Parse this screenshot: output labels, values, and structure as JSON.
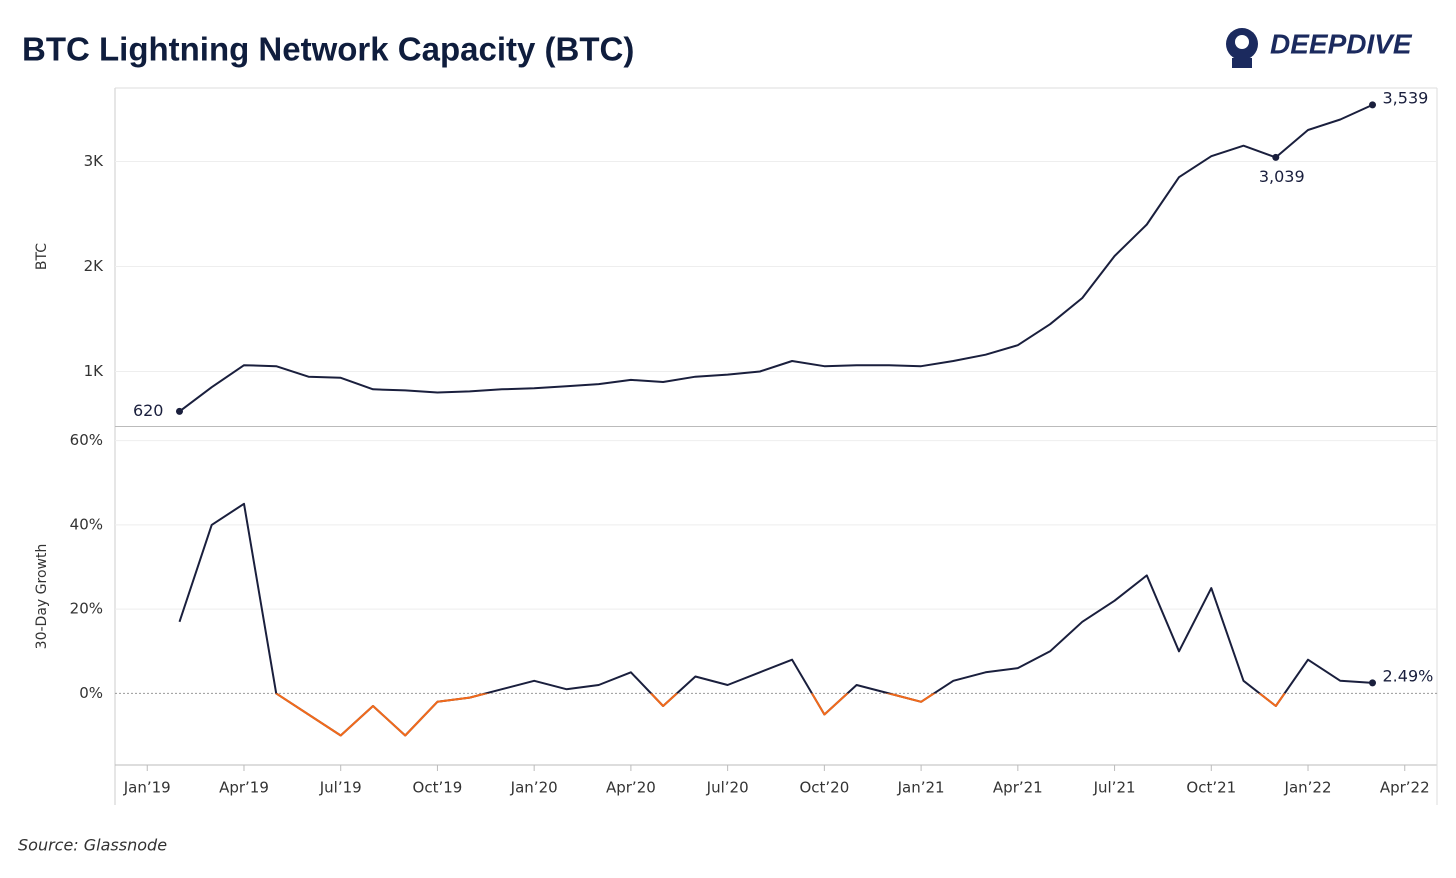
{
  "title": "BTC Lightning Network Capacity (BTC)",
  "source": "Source: Glassnode",
  "logo": "DEEPDIVE",
  "chart_data": [
    {
      "type": "line",
      "y_label": "BTC",
      "x": [
        "2019-02",
        "2019-03",
        "2019-04",
        "2019-05",
        "2019-06",
        "2019-07",
        "2019-08",
        "2019-09",
        "2019-10",
        "2019-11",
        "2019-12",
        "2020-01",
        "2020-02",
        "2020-03",
        "2020-04",
        "2020-05",
        "2020-06",
        "2020-07",
        "2020-08",
        "2020-09",
        "2020-10",
        "2020-11",
        "2020-12",
        "2021-01",
        "2021-02",
        "2021-03",
        "2021-04",
        "2021-05",
        "2021-06",
        "2021-07",
        "2021-08",
        "2021-09",
        "2021-10",
        "2021-11",
        "2021-12",
        "2022-01",
        "2022-02",
        "2022-03"
      ],
      "series": [
        {
          "name": "BTC",
          "color": "#1a1f3d",
          "values": [
            620,
            850,
            1060,
            1050,
            950,
            940,
            830,
            820,
            800,
            810,
            830,
            840,
            860,
            880,
            920,
            900,
            950,
            970,
            1000,
            1100,
            1050,
            1060,
            1060,
            1050,
            1100,
            1160,
            1250,
            1450,
            1700,
            2100,
            2400,
            2850,
            3050,
            3150,
            3039,
            3300,
            3400,
            3539
          ],
          "value_labels": [
            "620",
            null,
            null,
            null,
            null,
            null,
            null,
            null,
            null,
            null,
            null,
            null,
            null,
            null,
            null,
            null,
            null,
            null,
            null,
            null,
            null,
            null,
            null,
            null,
            null,
            null,
            null,
            null,
            null,
            null,
            null,
            null,
            null,
            null,
            "3,039",
            null,
            null,
            "3,539"
          ]
        }
      ],
      "xlim": [
        "2018-12",
        "2022-05"
      ],
      "ylim": [
        490,
        3700
      ],
      "yticks": [
        {
          "value": 1000,
          "label": "1K"
        },
        {
          "value": 2000,
          "label": "2K"
        },
        {
          "value": 3000,
          "label": "3K"
        }
      ],
      "grid": true
    },
    {
      "type": "line",
      "y_label": "30-Day Growth",
      "x": [
        "2019-02",
        "2019-03",
        "2019-04",
        "2019-05",
        "2019-06",
        "2019-07",
        "2019-08",
        "2019-09",
        "2019-10",
        "2019-11",
        "2019-12",
        "2020-01",
        "2020-02",
        "2020-03",
        "2020-04",
        "2020-05",
        "2020-06",
        "2020-07",
        "2020-08",
        "2020-09",
        "2020-10",
        "2020-11",
        "2020-12",
        "2021-01",
        "2021-02",
        "2021-03",
        "2021-04",
        "2021-05",
        "2021-06",
        "2021-07",
        "2021-08",
        "2021-09",
        "2021-10",
        "2021-11",
        "2021-12",
        "2022-01",
        "2022-02",
        "2022-03"
      ],
      "series": [
        {
          "name": "30-Day Growth",
          "color": "#1a1f3d",
          "negative_color": "#f26a1b",
          "values": [
            17,
            40,
            45,
            0,
            -5,
            -10,
            -3,
            -10,
            -2,
            -1,
            1,
            3,
            1,
            2,
            5,
            -3,
            4,
            2,
            5,
            8,
            -5,
            2,
            0,
            -2,
            3,
            5,
            6,
            10,
            17,
            22,
            28,
            10,
            25,
            3,
            -3,
            8,
            3,
            2.49
          ],
          "value_labels": [
            null,
            null,
            null,
            null,
            null,
            null,
            null,
            null,
            null,
            null,
            null,
            null,
            null,
            null,
            null,
            null,
            null,
            null,
            null,
            null,
            null,
            null,
            null,
            null,
            null,
            null,
            null,
            null,
            null,
            null,
            null,
            null,
            null,
            null,
            null,
            null,
            null,
            "2.49%"
          ]
        }
      ],
      "xlim": [
        "2018-12",
        "2022-05"
      ],
      "ylim": [
        -17,
        63
      ],
      "yticks": [
        {
          "value": 0,
          "label": "0%"
        },
        {
          "value": 20,
          "label": "20%"
        },
        {
          "value": 40,
          "label": "40%"
        },
        {
          "value": 60,
          "label": "60%"
        }
      ],
      "xticks": [
        {
          "value": "2019-01",
          "label": "Jan’19"
        },
        {
          "value": "2019-04",
          "label": "Apr’19"
        },
        {
          "value": "2019-07",
          "label": "Jul’19"
        },
        {
          "value": "2019-10",
          "label": "Oct’19"
        },
        {
          "value": "2020-01",
          "label": "Jan’20"
        },
        {
          "value": "2020-04",
          "label": "Apr’20"
        },
        {
          "value": "2020-07",
          "label": "Jul’20"
        },
        {
          "value": "2020-10",
          "label": "Oct’20"
        },
        {
          "value": "2021-01",
          "label": "Jan’21"
        },
        {
          "value": "2021-04",
          "label": "Apr’21"
        },
        {
          "value": "2021-07",
          "label": "Jul’21"
        },
        {
          "value": "2021-10",
          "label": "Oct’21"
        },
        {
          "value": "2022-01",
          "label": "Jan’22"
        },
        {
          "value": "2022-04",
          "label": "Apr’22"
        }
      ],
      "grid": true
    }
  ]
}
